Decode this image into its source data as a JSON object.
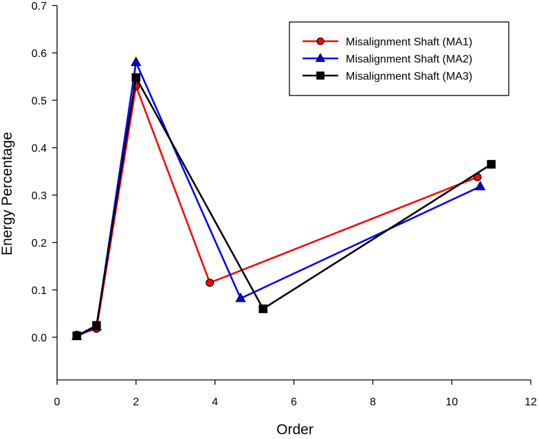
{
  "chart_data": {
    "type": "line",
    "title": "",
    "xlabel": "Order",
    "ylabel": "Energy Percentage",
    "xlim": [
      0,
      12
    ],
    "ylim": [
      -0.09,
      0.7
    ],
    "xticks": [
      0,
      2,
      4,
      6,
      8,
      10,
      12
    ],
    "xtick_labels": [
      "0",
      "2",
      "4",
      "6",
      "8",
      "10",
      "12"
    ],
    "yticks": [
      0.0,
      0.1,
      0.2,
      0.3,
      0.4,
      0.5,
      0.6,
      0.7
    ],
    "ytick_labels": [
      "0.0",
      "0.1",
      "0.2",
      "0.3",
      "0.4",
      "0.5",
      "0.6",
      "0.7"
    ],
    "grid": false,
    "legend_position": "top-right",
    "series": [
      {
        "name": "Misalignment Shaft (MA1)",
        "color": "#ff0000",
        "marker": "circle",
        "marker_color": "#ff0000",
        "x": [
          0.5,
          1.0,
          2.0,
          3.87,
          10.65
        ],
        "y": [
          0.005,
          0.018,
          0.53,
          0.115,
          0.338
        ]
      },
      {
        "name": "Misalignment Shaft (MA2)",
        "color": "#0000ff",
        "marker": "triangle",
        "marker_color": "#0000ff",
        "x": [
          0.5,
          1.0,
          2.0,
          4.65,
          10.72
        ],
        "y": [
          0.002,
          0.022,
          0.58,
          0.082,
          0.318
        ]
      },
      {
        "name": "Misalignment Shaft (MA3)",
        "color": "#000000",
        "marker": "square",
        "marker_color": "#000000",
        "x": [
          0.5,
          1.0,
          2.0,
          5.22,
          11.0
        ],
        "y": [
          0.003,
          0.025,
          0.548,
          0.06,
          0.365
        ]
      }
    ]
  }
}
